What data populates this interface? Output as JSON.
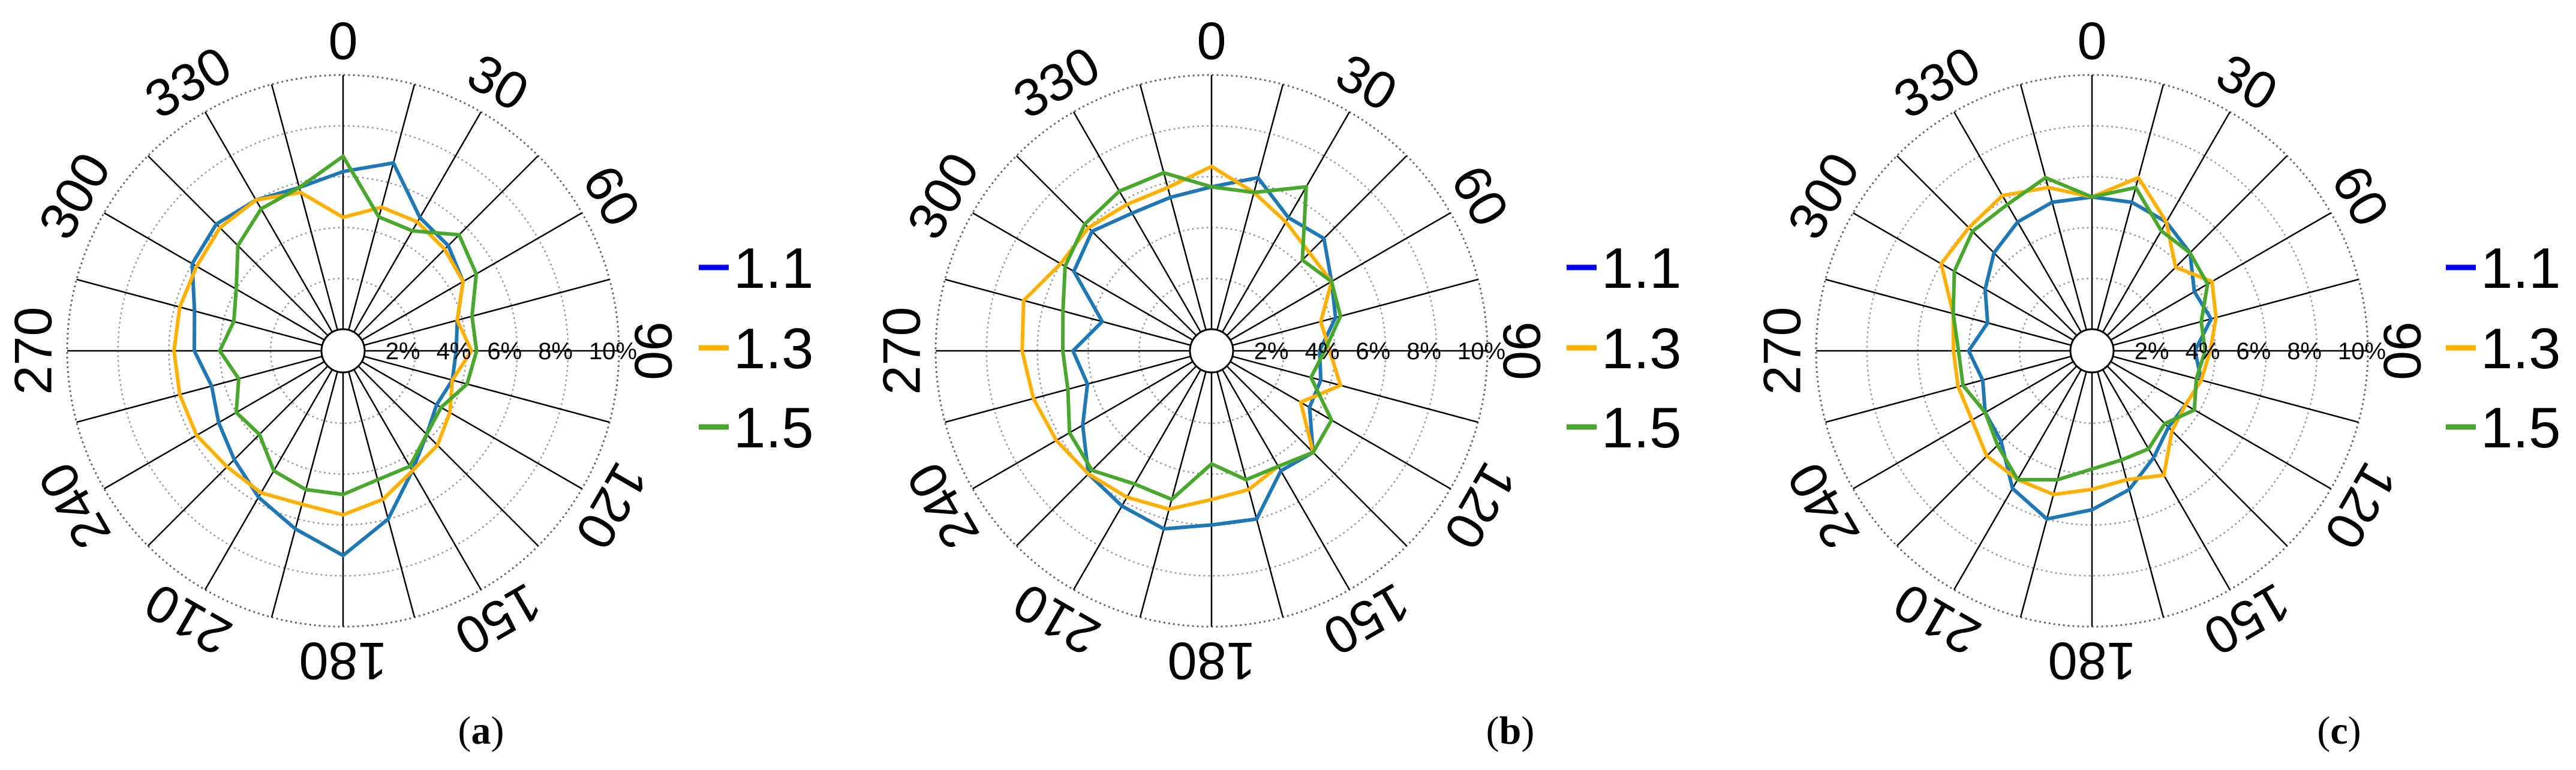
{
  "chart_data": [
    {
      "type": "polar-line",
      "panel_label": "a",
      "angle_ticks": [
        "0",
        "30",
        "60",
        "90",
        "120",
        "150",
        "180",
        "210",
        "240",
        "270",
        "300",
        "330"
      ],
      "radial_ticks": [
        "2%",
        "4%",
        "6%",
        "8%",
        "10%"
      ],
      "rlim": [
        0,
        10
      ],
      "theta_direction": "clockwise",
      "theta_zero": "top",
      "grid": true,
      "legend_position": "right",
      "theta": [
        0,
        15,
        30,
        45,
        60,
        75,
        90,
        105,
        120,
        135,
        150,
        165,
        180,
        195,
        210,
        225,
        240,
        255,
        270,
        285,
        300,
        315,
        330,
        345
      ],
      "series": [
        {
          "name": "1.1",
          "color": "#1f77b4",
          "values": [
            6.2,
            6.8,
            5.2,
            5.0,
            4.6,
            3.8,
            3.6,
            3.6,
            3.4,
            3.8,
            4.6,
            6.0,
            7.2,
            6.4,
            5.8,
            5.2,
            4.8,
            4.5,
            5.0,
            5.2,
            6.0,
            6.2,
            6.0,
            5.8
          ]
        },
        {
          "name": "1.3",
          "color": "#ffb000",
          "values": [
            4.4,
            5.0,
            5.0,
            4.8,
            4.6,
            3.8,
            4.2,
            3.6,
            4.0,
            4.4,
            4.6,
            5.2,
            5.6,
            5.4,
            5.6,
            5.6,
            5.8,
            5.8,
            5.8,
            5.8,
            5.8,
            6.0,
            6.0,
            5.6
          ]
        },
        {
          "name": "1.5",
          "color": "#4aa72e",
          "values": [
            6.8,
            4.6,
            4.6,
            5.6,
            5.2,
            4.4,
            4.4,
            4.2,
            3.6,
            3.8,
            4.4,
            4.4,
            4.8,
            4.8,
            4.6,
            3.8,
            4.0,
            3.4,
            4.0,
            3.6,
            4.0,
            5.0,
            5.6,
            5.8
          ]
        }
      ]
    },
    {
      "type": "polar-line",
      "panel_label": "b",
      "angle_ticks": [
        "0",
        "30",
        "60",
        "90",
        "120",
        "150",
        "180",
        "210",
        "240",
        "270",
        "300",
        "330"
      ],
      "radial_ticks": [
        "2%",
        "4%",
        "6%",
        "8%",
        "10%"
      ],
      "rlim": [
        0,
        10
      ],
      "theta_direction": "clockwise",
      "theta_zero": "top",
      "grid": true,
      "legend_position": "right",
      "theta": [
        0,
        15,
        30,
        45,
        60,
        75,
        90,
        105,
        120,
        135,
        150,
        165,
        180,
        195,
        210,
        225,
        240,
        255,
        270,
        285,
        300,
        315,
        330,
        345
      ],
      "series": [
        {
          "name": "1.1",
          "color": "#1f77b4",
          "values": [
            5.6,
            6.2,
            5.2,
            5.4,
            4.6,
            4.2,
            3.4,
            3.6,
            3.6,
            4.8,
            4.6,
            6.0,
            6.0,
            6.4,
            6.2,
            6.0,
            5.0,
            4.2,
            4.6,
            3.6,
            5.4,
            5.8,
            5.4,
            5.4
          ]
        },
        {
          "name": "1.3",
          "color": "#ffb000",
          "values": [
            6.4,
            5.6,
            5.0,
            4.6,
            4.6,
            3.6,
            3.8,
            4.4,
            3.2,
            4.8,
            4.4,
            4.8,
            5.0,
            5.6,
            5.8,
            6.0,
            6.2,
            6.4,
            6.6,
            6.8,
            6.0,
            6.0,
            5.8,
            5.8
          ]
        },
        {
          "name": "1.5",
          "color": "#4aa72e",
          "values": [
            5.6,
            5.6,
            6.6,
            4.2,
            4.6,
            4.4,
            3.6,
            3.2,
            4.6,
            4.8,
            4.4,
            4.4,
            3.6,
            5.2,
            5.2,
            5.8,
            5.6,
            5.0,
            5.0,
            5.2,
            5.8,
            6.2,
            6.4,
            6.4
          ]
        }
      ]
    },
    {
      "type": "polar-line",
      "panel_label": "c",
      "angle_ticks": [
        "0",
        "30",
        "60",
        "90",
        "120",
        "150",
        "180",
        "210",
        "240",
        "270",
        "300",
        "330"
      ],
      "radial_ticks": [
        "2%",
        "4%",
        "6%",
        "8%",
        "10%"
      ],
      "rlim": [
        0,
        10
      ],
      "theta_direction": "clockwise",
      "theta_zero": "top",
      "grid": true,
      "legend_position": "right",
      "theta": [
        0,
        15,
        30,
        45,
        60,
        75,
        90,
        105,
        120,
        135,
        150,
        165,
        180,
        195,
        210,
        225,
        240,
        255,
        270,
        285,
        300,
        315,
        330,
        345
      ],
      "series": [
        {
          "name": "1.1",
          "color": "#1f77b4",
          "values": [
            5.2,
            5.2,
            5.0,
            4.6,
            3.8,
            4.0,
            3.2,
            3.6,
            3.4,
            3.4,
            4.0,
            4.8,
            5.4,
            6.0,
            5.4,
            4.2,
            4.0,
            3.6,
            4.0,
            3.4,
            4.0,
            4.6,
            5.0,
            5.2
          ]
        },
        {
          "name": "1.3",
          "color": "#ffb000",
          "values": [
            5.2,
            6.2,
            5.0,
            3.8,
            4.6,
            4.2,
            3.8,
            3.6,
            3.4,
            3.6,
            4.8,
            4.4,
            4.6,
            5.0,
            5.0,
            5.0,
            4.6,
            4.6,
            4.6,
            4.8,
            6.0,
            6.0,
            6.2,
            5.8
          ]
        },
        {
          "name": "1.5",
          "color": "#4aa72e",
          "values": [
            5.2,
            5.8,
            4.6,
            4.6,
            4.4,
            3.6,
            3.6,
            3.4,
            3.8,
            3.2,
            3.6,
            3.6,
            3.8,
            4.4,
            5.0,
            4.4,
            4.0,
            4.4,
            4.4,
            4.8,
            5.4,
            5.8,
            5.8,
            6.2
          ]
        }
      ]
    }
  ]
}
